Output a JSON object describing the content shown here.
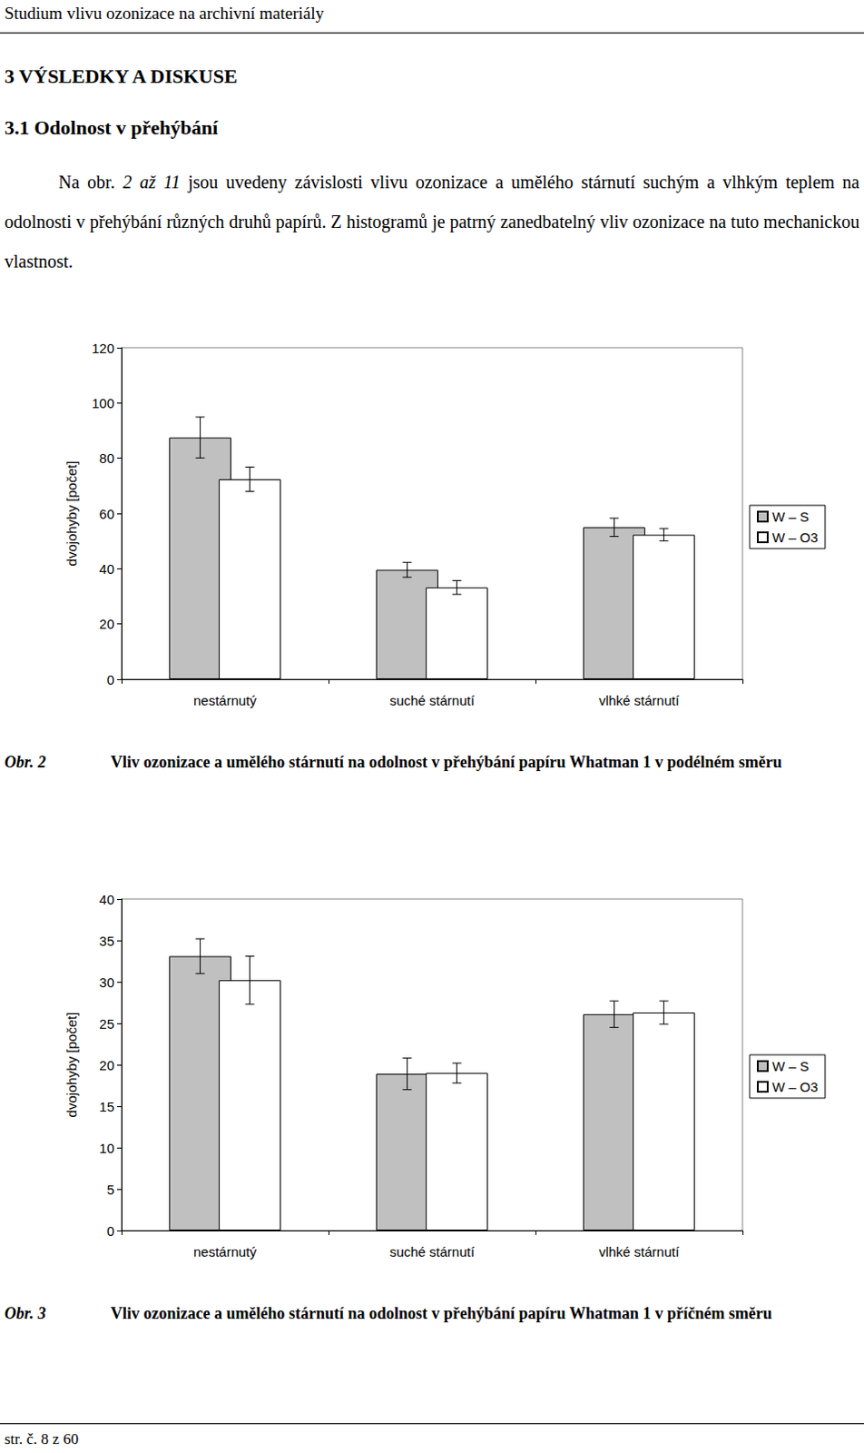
{
  "header": {
    "title": "Studium vlivu ozonizace na archivní materiály"
  },
  "headings": [
    "3 VÝSLEDKY A DISKUSE",
    "3.1 Odolnost v přehýbání"
  ],
  "paragraph": {
    "before": "Na obr. ",
    "italic": "2 až 11",
    "after": " jsou uvedeny závislosti vlivu ozonizace a umělého stárnutí suchým a vlhkým teplem na odolnosti v přehýbání různých druhů papírů. Z histogramů je patrný zanedbatelný vliv ozonizace na tuto mechanickou vlastnost."
  },
  "chart_data": [
    {
      "type": "bar",
      "ylabel": "dvojohyby [počet]",
      "categories": [
        "nestárnutý",
        "suché stárnutí",
        "vlhké stárnutí"
      ],
      "series": [
        {
          "name": "W – S",
          "color": "#c0c0c0",
          "values": [
            87.5,
            39.6,
            55.0
          ],
          "errors": [
            7.4,
            2.7,
            3.3
          ]
        },
        {
          "name": "W – O3",
          "color": "#ffffff",
          "values": [
            72.4,
            33.2,
            52.3
          ],
          "errors": [
            4.4,
            2.5,
            2.2
          ]
        }
      ],
      "ylim": [
        0,
        120
      ],
      "yticks": [
        0,
        20,
        40,
        60,
        80,
        100,
        120
      ],
      "grid": false,
      "legend": "right",
      "figure_label": "Obr. 2",
      "caption": "Vliv ozonizace a umělého stárnutí na odolnost v přehýbání papíru Whatman 1 v podélném směru"
    },
    {
      "type": "bar",
      "ylabel": "dvojohyby [počet]",
      "categories": [
        "nestárnutý",
        "suché stárnutí",
        "vlhké stárnutí"
      ],
      "series": [
        {
          "name": "W – S",
          "color": "#c0c0c0",
          "values": [
            33.1,
            18.9,
            26.1
          ],
          "errors": [
            2.1,
            1.9,
            1.6
          ]
        },
        {
          "name": "W – O3",
          "color": "#ffffff",
          "values": [
            30.2,
            19.0,
            26.3
          ],
          "errors": [
            2.9,
            1.2,
            1.4
          ]
        }
      ],
      "ylim": [
        0,
        40
      ],
      "yticks": [
        0,
        5,
        10,
        15,
        20,
        25,
        30,
        35,
        40
      ],
      "grid": false,
      "legend": "right",
      "figure_label": "Obr. 3",
      "caption": "Vliv ozonizace a umělého stárnutí na odolnost v přehýbání papíru Whatman 1 v příčném směru"
    }
  ],
  "footer": {
    "page": "str. č. 8 z 60"
  }
}
